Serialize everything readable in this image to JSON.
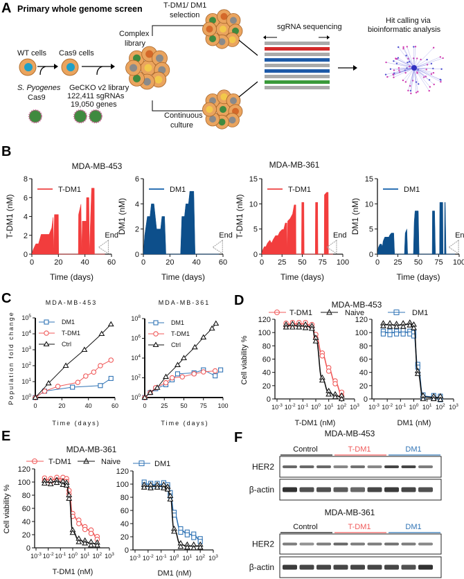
{
  "panels": {
    "A": "A",
    "B": "B",
    "C": "C",
    "D": "D",
    "E": "E",
    "F": "F"
  },
  "panel_a": {
    "title": "Primary whole genome screen",
    "wt_cells": "WT cells",
    "cas9_cells": "Cas9 cells",
    "s_pyogenes": "S. Pyogenes",
    "cas9": "Cas9",
    "library_line1": "GeCKO v2 library",
    "library_line2": "122,411 sgRNAs",
    "library_line3": "19,050 genes",
    "complex_line1": "Complex",
    "complex_line2": "library",
    "selection_line1": "T-DM1/ DM1",
    "selection_line2": "selection",
    "continuous_line1": "Continuous",
    "continuous_line2": "culture",
    "sequencing": "sgRNA sequencing",
    "hit_line1": "Hit calling via",
    "hit_line2": "bioinformatic analysis"
  },
  "panel_b": {
    "title_453": "MDA-MB-453",
    "title_361": "MDA-MB-361",
    "end_label": "End"
  },
  "panel_c": {
    "title_453": "MDA-MB-453",
    "title_361": "MDA-MB-361",
    "ylabel": "Population fold change",
    "xlabel": "Time (days)"
  },
  "panel_d": {
    "title": "MDA-MB-453",
    "legend": [
      "T-DM1",
      "Naive",
      "DM1"
    ],
    "ylabel": "Cell viability %",
    "xlabel1": "T-DM1 (nM)",
    "xlabel2": "DM1 (nM)"
  },
  "panel_e": {
    "title": "MDA-MB-361",
    "legend": [
      "T-DM1",
      "Naive",
      "DM1"
    ],
    "ylabel": "Cell viability %",
    "xlabel1": "T-DM1 (nM)",
    "xlabel2": "DM1 (nM)"
  },
  "panel_f": {
    "blots": [
      {
        "title": "MDA-MB-453",
        "groups": [
          "Control",
          "T-DM1",
          "DM1"
        ],
        "rows": [
          "HER2",
          "β-actin"
        ],
        "her2_intensity": [
          0.7,
          0.7,
          0.7,
          0.55,
          0.65,
          0.55,
          0.85,
          0.85,
          0.6
        ],
        "actin_intensity": [
          0.95,
          0.8,
          0.8,
          0.75,
          0.7,
          0.85,
          0.9,
          0.85,
          0.8
        ]
      },
      {
        "title": "MDA-MB-361",
        "groups": [
          "Control",
          "T-DM1",
          "DM1"
        ],
        "rows": [
          "HER2",
          "β-actin"
        ],
        "her2_intensity": [
          0.6,
          0.5,
          0.6,
          0.7,
          0.6,
          0.6,
          0.65,
          0.6,
          0.55
        ],
        "actin_intensity": [
          0.9,
          0.85,
          0.85,
          0.85,
          0.85,
          0.85,
          0.85,
          0.8,
          0.95
        ]
      }
    ]
  },
  "colors": {
    "tdm1": "#f23d3d",
    "dm1": "#0d4f8b",
    "tdm1_line": "#f05a5a",
    "dm1_line": "#2f73b5",
    "ctrl": "#111111",
    "group_control": "#111111",
    "group_tdm1": "#f05a5a",
    "group_dm1": "#2f73b5"
  },
  "chart_data": [
    {
      "id": "B1",
      "type": "area",
      "title": "MDA-MB-453",
      "xlabel": "Time (days)",
      "ylabel": "T-DM1 (nM)",
      "xlim": [
        0,
        60
      ],
      "ylim": [
        0,
        8
      ],
      "xticks": [
        0,
        20,
        40,
        60
      ],
      "yticks": [
        0,
        2,
        4,
        6,
        8
      ],
      "legend": "T-DM1",
      "end_day": 55,
      "series": [
        {
          "name": "T-DM1",
          "x": [
            0,
            1,
            3,
            5,
            7,
            13,
            15,
            16,
            16.5,
            17,
            18,
            20,
            20.2,
            35,
            35.2,
            37,
            37.5,
            38,
            39,
            41,
            41.2,
            43,
            43.3,
            45,
            47,
            47.2,
            55
          ],
          "y": [
            0,
            0.5,
            1.1,
            1.1,
            2.1,
            2.1,
            2.8,
            3.9,
            0,
            4.2,
            4.2,
            4.2,
            0,
            0,
            4.2,
            5.3,
            0,
            3.5,
            3.5,
            3.5,
            6,
            6,
            0,
            7,
            7,
            0,
            0
          ]
        }
      ]
    },
    {
      "id": "B2",
      "type": "area",
      "title": "MDA-MB-453",
      "xlabel": "Time (days)",
      "ylabel": "DM1 (nM)",
      "xlim": [
        0,
        60
      ],
      "ylim": [
        0,
        6
      ],
      "xticks": [
        0,
        20,
        40,
        60
      ],
      "yticks": [
        0,
        2,
        4,
        6
      ],
      "legend": "DM1",
      "end_day": 57,
      "series": [
        {
          "name": "DM1",
          "x": [
            0,
            1,
            3,
            5,
            6,
            8,
            10,
            13,
            14,
            16,
            17,
            28,
            29,
            31,
            32,
            34,
            35,
            38,
            39,
            57
          ],
          "y": [
            0,
            1.5,
            3,
            3,
            4,
            4,
            2,
            2,
            3,
            3,
            0,
            0,
            3,
            3,
            4,
            4,
            5,
            5,
            0,
            0
          ]
        }
      ]
    },
    {
      "id": "B3",
      "type": "area",
      "title": "MDA-MB-361",
      "xlabel": "Time (days)",
      "ylabel": "T-DM1 (nM)",
      "xlim": [
        0,
        100
      ],
      "ylim": [
        0,
        15
      ],
      "xticks": [
        0,
        25,
        50,
        75,
        100
      ],
      "yticks": [
        0,
        5,
        10,
        15
      ],
      "legend": "T-DM1",
      "end_day": 88,
      "series": [
        {
          "name": "T-DM1",
          "x": [
            0,
            1,
            3,
            5,
            7,
            10,
            12,
            14,
            17,
            20,
            22,
            25,
            27,
            29,
            31,
            31.3,
            32,
            35,
            38,
            40,
            42,
            42.3,
            49,
            49.3,
            52,
            52.3,
            66,
            66.3,
            69,
            69.3,
            77,
            77.3,
            80,
            82,
            82.3,
            88
          ],
          "y": [
            0,
            0.8,
            1.5,
            1.5,
            2.2,
            2.8,
            2.2,
            2.9,
            3.7,
            3.7,
            4.4,
            4.9,
            4.9,
            6.2,
            6.2,
            0,
            6.6,
            7.1,
            8,
            9.8,
            9.8,
            0,
            0,
            10.3,
            10.3,
            0,
            0,
            10.3,
            10.3,
            0,
            0,
            11.8,
            12.3,
            12.3,
            0,
            0
          ]
        }
      ]
    },
    {
      "id": "B4",
      "type": "area",
      "title": "MDA-MB-361",
      "xlabel": "Time (days)",
      "ylabel": "DM1 (nM)",
      "xlim": [
        0,
        100
      ],
      "ylim": [
        0,
        15
      ],
      "xticks": [
        0,
        25,
        50,
        75,
        100
      ],
      "yticks": [
        0,
        5,
        10,
        15
      ],
      "legend": "DM1",
      "end_day": 95,
      "series": [
        {
          "name": "DM1",
          "x": [
            0,
            1,
            3,
            5,
            6,
            7,
            9,
            14,
            15,
            17,
            20,
            21,
            33,
            34,
            36,
            37,
            44,
            45,
            46,
            50,
            51,
            67,
            67.3,
            70,
            71,
            76,
            76.3,
            80,
            80.3,
            82,
            82.3,
            83,
            84,
            95
          ],
          "y": [
            0,
            1.3,
            2,
            2,
            1.5,
            2.6,
            3.4,
            3.4,
            3.8,
            4.2,
            4.2,
            0,
            0,
            4.2,
            5,
            0,
            0,
            6.4,
            8.6,
            8.6,
            0,
            0,
            8.6,
            8.6,
            0,
            0,
            10.3,
            10.3,
            0,
            0,
            10.3,
            10.3,
            0,
            0
          ]
        }
      ]
    },
    {
      "id": "C1",
      "type": "line",
      "title": "MDA-MB-453",
      "xlabel": "Time (days)",
      "ylabel": "Population fold change",
      "yscale": "log",
      "xlim": [
        0,
        60
      ],
      "ylim_log10": [
        0,
        5
      ],
      "xticks": [
        0,
        20,
        40,
        60
      ],
      "yticks_log10": [
        0,
        1,
        2,
        3,
        4,
        5
      ],
      "series": [
        {
          "name": "DM1",
          "marker": "square",
          "x": [
            0,
            7,
            28,
            49,
            57
          ],
          "log10_y": [
            0,
            0.4,
            0.65,
            0.75,
            1.2
          ]
        },
        {
          "name": "T-DM1",
          "marker": "circle",
          "x": [
            0,
            7,
            17,
            32,
            38,
            44,
            49,
            57
          ],
          "log10_y": [
            0,
            0.4,
            0.7,
            0.95,
            1.35,
            1.6,
            2,
            2.35
          ]
        },
        {
          "name": "Ctrl",
          "marker": "triangle",
          "x": [
            0,
            10,
            23,
            37,
            50,
            57
          ],
          "log10_y": [
            0,
            0.9,
            2,
            3,
            4,
            4.6
          ]
        }
      ]
    },
    {
      "id": "C2",
      "type": "line",
      "title": "MDA-MB-361",
      "xlabel": "Time (days)",
      "ylabel": "Population fold change",
      "yscale": "log",
      "xlim": [
        0,
        100
      ],
      "ylim_log10": [
        0,
        8
      ],
      "xticks": [
        0,
        25,
        50,
        75,
        100
      ],
      "yticks_log10": [
        0,
        2,
        4,
        6,
        8
      ],
      "series": [
        {
          "name": "DM1",
          "marker": "square",
          "x": [
            0,
            7,
            14,
            27,
            35,
            42,
            63,
            75,
            90,
            97
          ],
          "log10_y": [
            0,
            0.5,
            0.9,
            1.3,
            1.8,
            2.4,
            2.5,
            2.8,
            2.2,
            2.8
          ]
        },
        {
          "name": "T-DM1",
          "marker": "circle",
          "x": [
            0,
            7,
            14,
            27,
            35,
            48,
            63,
            75,
            90
          ],
          "log10_y": [
            0,
            0.5,
            1,
            1.5,
            2,
            2.1,
            2.4,
            2.6,
            2.7
          ]
        },
        {
          "name": "Ctrl",
          "marker": "triangle",
          "x": [
            0,
            7,
            16,
            27,
            42,
            50,
            64,
            75,
            86,
            91
          ],
          "log10_y": [
            0,
            0.5,
            1,
            2.1,
            3.3,
            4,
            5.1,
            6.1,
            7,
            7.5
          ]
        }
      ]
    },
    {
      "id": "D1",
      "type": "dose-response",
      "title": "MDA-MB-453",
      "xlabel": "T-DM1 (nM)",
      "ylabel": "Cell viability %",
      "xscale": "log",
      "xlim_log10": [
        -3,
        3
      ],
      "ylim": [
        0,
        120
      ],
      "xticks_log10": [
        -3,
        -2,
        -1,
        0,
        1,
        2,
        3
      ],
      "yticks": [
        0,
        20,
        40,
        60,
        80,
        100,
        120
      ],
      "series": [
        {
          "name": "T-DM1",
          "marker": "circle",
          "log10_x": [
            -2.3,
            -1.8,
            -1.3,
            -0.8,
            -0.3,
            0,
            0.5,
            1,
            1.5,
            2
          ],
          "y": [
            112,
            113,
            113,
            113,
            110,
            95,
            67,
            45,
            25,
            8
          ]
        },
        {
          "name": "Naive",
          "marker": "triangle",
          "log10_x": [
            -2.3,
            -1.8,
            -1.3,
            -0.8,
            -0.3,
            0,
            0.5,
            1,
            1.5,
            2
          ],
          "y": [
            110,
            111,
            110,
            110,
            108,
            90,
            30,
            10,
            5,
            3
          ]
        }
      ]
    },
    {
      "id": "D2",
      "type": "dose-response",
      "title": "MDA-MB-453",
      "xlabel": "DM1 (nM)",
      "ylabel": "",
      "xscale": "log",
      "xlim_log10": [
        -3,
        3
      ],
      "ylim": [
        0,
        120
      ],
      "xticks_log10": [
        -3,
        -2,
        -1,
        0,
        1,
        2,
        3
      ],
      "yticks": [
        0,
        20,
        40,
        60,
        80,
        100,
        120
      ],
      "series": [
        {
          "name": "DM1",
          "marker": "square",
          "log10_x": [
            -2.3,
            -1.8,
            -1.3,
            -0.8,
            -0.3,
            0,
            0.3,
            0.7,
            1.5,
            2
          ],
          "y": [
            100,
            100,
            100,
            101,
            100,
            98,
            50,
            4,
            3,
            2
          ]
        },
        {
          "name": "Naive",
          "marker": "triangle",
          "log10_x": [
            -2.3,
            -1.8,
            -1.3,
            -0.8,
            -0.3,
            0,
            0.3,
            0.7,
            1.5,
            2
          ],
          "y": [
            112,
            112,
            111,
            112,
            113,
            110,
            40,
            3,
            2,
            2
          ]
        }
      ]
    },
    {
      "id": "E1",
      "type": "dose-response",
      "title": "MDA-MB-361",
      "xlabel": "T-DM1 (nM)",
      "ylabel": "Cell viability %",
      "xscale": "log",
      "xlim_log10": [
        -3,
        3
      ],
      "ylim": [
        0,
        120
      ],
      "xticks_log10": [
        -3,
        -2,
        -1,
        0,
        1,
        2,
        3
      ],
      "yticks": [
        0,
        20,
        40,
        60,
        80,
        100,
        120
      ],
      "series": [
        {
          "name": "T-DM1",
          "marker": "circle",
          "log10_x": [
            -2.3,
            -1.8,
            -1.3,
            -0.8,
            -0.5,
            -0.3,
            0,
            0.5,
            1,
            1.5,
            2
          ],
          "y": [
            104,
            103,
            105,
            105,
            103,
            85,
            50,
            40,
            30,
            25,
            15
          ]
        },
        {
          "name": "Naive",
          "marker": "triangle",
          "log10_x": [
            -2.3,
            -1.8,
            -1.3,
            -0.8,
            -0.5,
            -0.3,
            0,
            0.5,
            1,
            1.5,
            2
          ],
          "y": [
            100,
            100,
            101,
            99,
            97,
            78,
            25,
            12,
            9,
            7,
            6
          ]
        }
      ]
    },
    {
      "id": "E2",
      "type": "dose-response",
      "title": "MDA-MB-361",
      "xlabel": "DM1 (nM)",
      "ylabel": "",
      "xscale": "log",
      "xlim_log10": [
        -3,
        3
      ],
      "ylim": [
        0,
        120
      ],
      "xticks_log10": [
        -3,
        -2,
        -1,
        0,
        1,
        2,
        3
      ],
      "yticks": [
        0,
        20,
        40,
        60,
        80,
        100,
        120
      ],
      "series": [
        {
          "name": "DM1",
          "marker": "square",
          "log10_x": [
            -2.3,
            -1.8,
            -1.3,
            -0.8,
            -0.5,
            -0.3,
            0,
            0.5,
            1,
            1.5,
            2
          ],
          "y": [
            101,
            99,
            99,
            100,
            97,
            85,
            55,
            30,
            25,
            22,
            15
          ]
        },
        {
          "name": "Naive",
          "marker": "triangle",
          "log10_x": [
            -2.3,
            -1.8,
            -1.3,
            -0.8,
            -0.5,
            -0.3,
            0,
            0.5,
            1,
            1.5,
            2
          ],
          "y": [
            97,
            97,
            97,
            97,
            94,
            80,
            30,
            8,
            6,
            6,
            6
          ]
        }
      ]
    }
  ]
}
